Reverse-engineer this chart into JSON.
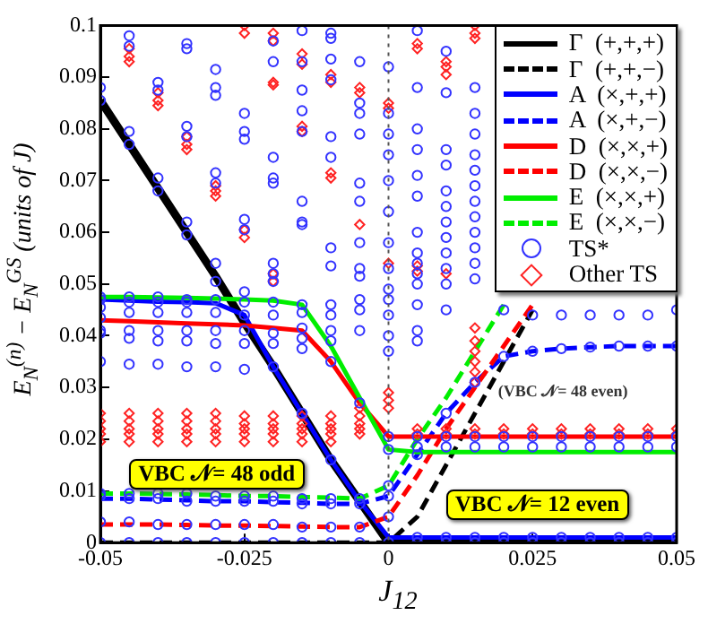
{
  "chart_data": {
    "type": "line",
    "xlabel": "J$_{12}$",
    "ylabel": "E$_{N}$$^{(n)}$ − E$_{N}$$^{GS}$  (units of J)",
    "xlim": [
      -0.05,
      0.05
    ],
    "xticks": [
      -0.05,
      -0.025,
      0,
      0.025,
      0.05
    ],
    "ylim": [
      0,
      0.1
    ],
    "yticks": [
      0,
      0.01,
      0.02,
      0.03,
      0.04,
      0.05,
      0.06,
      0.07,
      0.08,
      0.09,
      0.1
    ],
    "grid": false,
    "legend": "top right",
    "marker": "none",
    "ref_lines": [
      {
        "axis": "x",
        "value": 0,
        "color": "#555555",
        "line_style": "dotted"
      }
    ],
    "annotations": [
      "VBC 𝒩= 48 odd",
      "(VBC 𝒩= 48 even)",
      "VBC 𝒩= 12 even"
    ],
    "series": [
      {
        "name": "Γ  (+,+,+)",
        "color": "#000000",
        "line_style": "solid",
        "x": [
          -0.05,
          -0.045,
          -0.04,
          -0.035,
          -0.03,
          -0.025,
          -0.02,
          -0.015,
          -0.01,
          -0.005,
          0,
          0.005,
          0.01,
          0.015,
          0.02,
          0.025,
          0.03,
          0.035,
          0.04,
          0.045,
          0.05
        ],
        "values": [
          0.0855,
          0.077,
          0.0685,
          0.06,
          0.0515,
          0.0425,
          0.034,
          0.025,
          0.016,
          0.008,
          0,
          0,
          0,
          0,
          0,
          0,
          0,
          0,
          0,
          0,
          0
        ]
      },
      {
        "name": "Γ  (+,+,−)",
        "color": "#000000",
        "line_style": "dashed",
        "x": [
          -0.05,
          -0.045,
          -0.04,
          -0.035,
          -0.03,
          -0.025,
          -0.02,
          -0.015,
          -0.01,
          -0.005,
          0,
          0.005,
          0.01,
          0.015,
          0.02,
          0.025
        ],
        "values": [
          0,
          0,
          0,
          0,
          0,
          0,
          0,
          0,
          0,
          0,
          0,
          0.005,
          0.015,
          0.025,
          0.035,
          0.045
        ]
      },
      {
        "name": "A  (×,+,+)",
        "color": "#0000ff",
        "line_style": "solid",
        "x": [
          -0.05,
          -0.045,
          -0.04,
          -0.035,
          -0.03,
          -0.025,
          -0.02,
          -0.015,
          -0.01,
          -0.005,
          0,
          0.005,
          0.01,
          0.015,
          0.02,
          0.025,
          0.03,
          0.035,
          0.04,
          0.045,
          0.05
        ],
        "values": [
          0.047,
          0.0468,
          0.0466,
          0.0465,
          0.0463,
          0.044,
          0.034,
          0.025,
          0.016,
          0.008,
          0.001,
          0.001,
          0.001,
          0.001,
          0.001,
          0.001,
          0.001,
          0.001,
          0.001,
          0.001,
          0.001
        ]
      },
      {
        "name": "A  (×,+,−)",
        "color": "#0000ff",
        "line_style": "dashed",
        "x": [
          -0.05,
          -0.045,
          -0.04,
          -0.035,
          -0.03,
          -0.025,
          -0.02,
          -0.015,
          -0.01,
          -0.005,
          0,
          0.005,
          0.01,
          0.015,
          0.02,
          0.025,
          0.03,
          0.035,
          0.04,
          0.045,
          0.05
        ],
        "values": [
          0.0085,
          0.0085,
          0.0083,
          0.0082,
          0.008,
          0.008,
          0.0078,
          0.0077,
          0.0075,
          0.0075,
          0.009,
          0.017,
          0.025,
          0.031,
          0.036,
          0.037,
          0.0375,
          0.0378,
          0.038,
          0.038,
          0.038
        ]
      },
      {
        "name": "D  (×,×,+)",
        "color": "#ff0000",
        "line_style": "solid",
        "x": [
          -0.05,
          -0.045,
          -0.04,
          -0.035,
          -0.03,
          -0.025,
          -0.02,
          -0.015,
          -0.01,
          -0.005,
          0,
          0.005,
          0.01,
          0.015,
          0.02,
          0.025,
          0.03,
          0.035,
          0.04,
          0.045,
          0.05
        ],
        "values": [
          0.043,
          0.0428,
          0.0426,
          0.0424,
          0.0422,
          0.042,
          0.0415,
          0.041,
          0.035,
          0.027,
          0.0205,
          0.0205,
          0.0205,
          0.0205,
          0.0205,
          0.0205,
          0.0205,
          0.0205,
          0.0205,
          0.0205,
          0.0205
        ]
      },
      {
        "name": "D  (×,×,−)",
        "color": "#ff0000",
        "line_style": "dashed",
        "x": [
          -0.05,
          -0.045,
          -0.04,
          -0.035,
          -0.03,
          -0.025,
          -0.02,
          -0.015,
          -0.01,
          -0.005,
          0,
          0.005,
          0.01,
          0.015,
          0.02,
          0.025
        ],
        "values": [
          0.0035,
          0.0035,
          0.0035,
          0.0034,
          0.0033,
          0.0033,
          0.0032,
          0.0031,
          0.003,
          0.003,
          0.005,
          0.013,
          0.022,
          0.03,
          0.038,
          0.046
        ]
      },
      {
        "name": "E  (×,×,+)",
        "color": "#00ee00",
        "line_style": "solid",
        "x": [
          -0.05,
          -0.045,
          -0.04,
          -0.035,
          -0.03,
          -0.025,
          -0.02,
          -0.015,
          -0.01,
          -0.005,
          0,
          0.005,
          0.01,
          0.015,
          0.02,
          0.025,
          0.03,
          0.035,
          0.04,
          0.045,
          0.05
        ],
        "values": [
          0.0475,
          0.0475,
          0.0474,
          0.0473,
          0.0472,
          0.047,
          0.0468,
          0.046,
          0.038,
          0.028,
          0.018,
          0.0175,
          0.0175,
          0.0175,
          0.0175,
          0.0175,
          0.0175,
          0.0175,
          0.0175,
          0.0175,
          0.0175
        ]
      },
      {
        "name": "E  (×,×,−)",
        "color": "#00ee00",
        "line_style": "dashed",
        "x": [
          -0.05,
          -0.045,
          -0.04,
          -0.035,
          -0.03,
          -0.025,
          -0.02,
          -0.015,
          -0.01,
          -0.005,
          0,
          0.005,
          0.01,
          0.015,
          0.02
        ],
        "values": [
          0.0095,
          0.0095,
          0.0094,
          0.0093,
          0.0092,
          0.009,
          0.009,
          0.0088,
          0.0087,
          0.0085,
          0.011,
          0.02,
          0.028,
          0.037,
          0.046
        ]
      },
      {
        "name": "TS*",
        "type": "scatter",
        "color": "#3333ff",
        "marker": "circle",
        "x": [
          -0.05,
          -0.05,
          -0.05,
          -0.05,
          -0.05,
          -0.05,
          -0.05,
          -0.05,
          -0.05,
          -0.05,
          -0.05,
          -0.05,
          -0.05,
          -0.045,
          -0.045,
          -0.045,
          -0.045,
          -0.045,
          -0.045,
          -0.045,
          -0.045,
          -0.045,
          -0.045,
          -0.045,
          -0.045,
          -0.045,
          -0.045,
          -0.04,
          -0.04,
          -0.04,
          -0.04,
          -0.04,
          -0.04,
          -0.04,
          -0.04,
          -0.04,
          -0.04,
          -0.04,
          -0.04,
          -0.04,
          -0.04,
          -0.035,
          -0.035,
          -0.035,
          -0.035,
          -0.035,
          -0.035,
          -0.035,
          -0.035,
          -0.035,
          -0.035,
          -0.035,
          -0.035,
          -0.035,
          -0.035,
          -0.035,
          -0.035,
          -0.03,
          -0.03,
          -0.03,
          -0.03,
          -0.03,
          -0.03,
          -0.03,
          -0.03,
          -0.03,
          -0.03,
          -0.03,
          -0.03,
          -0.03,
          -0.03,
          -0.03,
          -0.03,
          -0.025,
          -0.025,
          -0.025,
          -0.025,
          -0.025,
          -0.025,
          -0.025,
          -0.025,
          -0.025,
          -0.025,
          -0.025,
          -0.025,
          -0.025,
          -0.025,
          -0.025,
          -0.02,
          -0.02,
          -0.02,
          -0.02,
          -0.02,
          -0.02,
          -0.02,
          -0.02,
          -0.02,
          -0.02,
          -0.02,
          -0.02,
          -0.02,
          -0.02,
          -0.02,
          -0.02,
          -0.02,
          -0.015,
          -0.015,
          -0.015,
          -0.015,
          -0.015,
          -0.015,
          -0.015,
          -0.015,
          -0.015,
          -0.015,
          -0.015,
          -0.015,
          -0.015,
          -0.015,
          -0.015,
          -0.015,
          -0.015,
          -0.015,
          -0.01,
          -0.01,
          -0.01,
          -0.01,
          -0.01,
          -0.01,
          -0.01,
          -0.01,
          -0.01,
          -0.01,
          -0.01,
          -0.01,
          -0.01,
          -0.01,
          -0.01,
          -0.01,
          -0.01,
          -0.01,
          -0.005,
          -0.005,
          -0.005,
          -0.005,
          -0.005,
          -0.005,
          -0.005,
          -0.005,
          -0.005,
          -0.005,
          -0.005,
          -0.005,
          -0.005,
          -0.005,
          -0.005,
          -0.005,
          -0.005,
          0,
          0,
          0,
          0,
          0,
          0,
          0,
          0,
          0,
          0,
          0,
          0,
          0,
          0,
          0,
          0,
          0,
          0,
          0,
          0.005,
          0.005,
          0.005,
          0.005,
          0.005,
          0.005,
          0.005,
          0.005,
          0.005,
          0.005,
          0.005,
          0.005,
          0.005,
          0.005,
          0.005,
          0.005,
          0.005,
          0.005,
          0.005,
          0.01,
          0.01,
          0.01,
          0.01,
          0.01,
          0.01,
          0.01,
          0.01,
          0.01,
          0.01,
          0.01,
          0.01,
          0.01,
          0.01,
          0.01,
          0.01,
          0.01,
          0.015,
          0.015,
          0.015,
          0.015,
          0.015,
          0.015,
          0.015,
          0.015,
          0.015,
          0.015,
          0.015,
          0.015,
          0.015,
          0.015,
          0.015,
          0.015,
          0.015,
          0.02,
          0.02,
          0.02,
          0.02,
          0.02,
          0.02,
          0.025,
          0.025,
          0.025,
          0.025,
          0.025,
          0.025,
          0.03,
          0.03,
          0.03,
          0.03,
          0.03,
          0.03,
          0.035,
          0.035,
          0.035,
          0.035,
          0.035,
          0.035,
          0.04,
          0.04,
          0.04,
          0.04,
          0.04,
          0.04,
          0.045,
          0.045,
          0.045,
          0.045,
          0.045,
          0.045,
          0.05,
          0.05,
          0.05,
          0.05,
          0.05,
          0.05
        ],
        "values": [
          0.088,
          0.0855,
          0.0475,
          0.047,
          0.0455,
          0.0435,
          0.041,
          0.0405,
          0.035,
          0.0095,
          0.009,
          0.004,
          0,
          0.098,
          0.096,
          0.0795,
          0.077,
          0.0475,
          0.0465,
          0.0445,
          0.041,
          0.0395,
          0.0345,
          0.0095,
          0.0085,
          0.004,
          0,
          0.089,
          0.0875,
          0.0705,
          0.068,
          0.0475,
          0.0465,
          0.0445,
          0.041,
          0.039,
          0.0345,
          0.0095,
          0.0085,
          0.0035,
          0,
          0.0965,
          0.0955,
          0.0805,
          0.0785,
          0.062,
          0.0595,
          0.047,
          0.0465,
          0.0445,
          0.041,
          0.039,
          0.034,
          0.0095,
          0.008,
          0.0035,
          0,
          0.0915,
          0.088,
          0.0865,
          0.0715,
          0.0695,
          0.054,
          0.0505,
          0.047,
          0.0445,
          0.041,
          0.0385,
          0.034,
          0.009,
          0.008,
          0.0035,
          0,
          0.083,
          0.0795,
          0.078,
          0.0625,
          0.0605,
          0.0485,
          0.0465,
          0.044,
          0.041,
          0.0385,
          0.0335,
          0.009,
          0.008,
          0.0035,
          0,
          0.097,
          0.093,
          0.0745,
          0.0705,
          0.0695,
          0.054,
          0.052,
          0.0505,
          0.0465,
          0.044,
          0.0405,
          0.0385,
          0.034,
          0.009,
          0.008,
          0.0035,
          0,
          0.099,
          0.093,
          0.0875,
          0.0835,
          0.0795,
          0.066,
          0.062,
          0.0615,
          0.046,
          0.0445,
          0.0415,
          0.0395,
          0.0375,
          0.025,
          0.0085,
          0.0075,
          0.003,
          0,
          0.0985,
          0.0975,
          0.0935,
          0.0895,
          0.0785,
          0.0745,
          0.057,
          0.0535,
          0.046,
          0.044,
          0.041,
          0.039,
          0.035,
          0.016,
          0.0085,
          0.0075,
          0.003,
          0,
          0.093,
          0.085,
          0.083,
          0.079,
          0.0695,
          0.066,
          0.058,
          0.053,
          0.0515,
          0.047,
          0.045,
          0.041,
          0.027,
          0.0085,
          0.0075,
          0.003,
          0,
          0.092,
          0.083,
          0.079,
          0.075,
          0.07,
          0.064,
          0.058,
          0.053,
          0.049,
          0.047,
          0.044,
          0.04,
          0.037,
          0.0205,
          0.018,
          0.011,
          0.009,
          0.005,
          0,
          0.099,
          0.088,
          0.08,
          0.076,
          0.071,
          0.067,
          0.06,
          0.056,
          0.054,
          0.052,
          0.05,
          0.046,
          0.041,
          0.039,
          0.0205,
          0.0185,
          0.017,
          0.001,
          0,
          0.095,
          0.087,
          0.076,
          0.073,
          0.068,
          0.065,
          0.062,
          0.059,
          0.056,
          0.053,
          0.05,
          0.045,
          0.025,
          0.0205,
          0.0185,
          0.001,
          0,
          0.088,
          0.083,
          0.079,
          0.075,
          0.072,
          0.069,
          0.066,
          0.063,
          0.06,
          0.057,
          0.054,
          0.051,
          0.031,
          0.0205,
          0.0185,
          0.001,
          0,
          0.045,
          0.036,
          0.0205,
          0.0185,
          0.001,
          0,
          0.044,
          0.037,
          0.0205,
          0.0185,
          0.001,
          0,
          0.044,
          0.0375,
          0.0205,
          0.0185,
          0.001,
          0,
          0.044,
          0.0378,
          0.0205,
          0.0185,
          0.001,
          0,
          0.044,
          0.038,
          0.0205,
          0.0185,
          0.001,
          0,
          0.044,
          0.038,
          0.0205,
          0.0185,
          0.001,
          0,
          0.045,
          0.038,
          0.0205,
          0.0185,
          0.001,
          0
        ]
      },
      {
        "name": "Other TS",
        "type": "scatter",
        "color": "#ff2222",
        "marker": "diamond",
        "x": [
          -0.05,
          -0.05,
          -0.05,
          -0.05,
          -0.05,
          -0.045,
          -0.045,
          -0.045,
          -0.045,
          -0.045,
          -0.045,
          -0.045,
          -0.045,
          -0.04,
          -0.04,
          -0.04,
          -0.04,
          -0.04,
          -0.04,
          -0.04,
          -0.04,
          -0.035,
          -0.035,
          -0.035,
          -0.035,
          -0.035,
          -0.035,
          -0.035,
          -0.035,
          -0.03,
          -0.03,
          -0.03,
          -0.03,
          -0.03,
          -0.03,
          -0.03,
          -0.03,
          -0.025,
          -0.025,
          -0.025,
          -0.025,
          -0.025,
          -0.025,
          -0.025,
          -0.025,
          -0.025,
          -0.02,
          -0.02,
          -0.02,
          -0.02,
          -0.02,
          -0.02,
          -0.02,
          -0.02,
          -0.02,
          -0.02,
          -0.02,
          -0.015,
          -0.015,
          -0.015,
          -0.015,
          -0.015,
          -0.015,
          -0.015,
          -0.015,
          -0.015,
          -0.01,
          -0.01,
          -0.01,
          -0.01,
          -0.01,
          -0.01,
          -0.01,
          -0.01,
          -0.01,
          -0.005,
          -0.005,
          -0.005,
          -0.005,
          -0.005,
          -0.005,
          -0.005,
          -0.005,
          0,
          0,
          0,
          0,
          0,
          0,
          0.005,
          0.005,
          0.005,
          0.005,
          0.005,
          0.005,
          0.01,
          0.01,
          0.01,
          0.01,
          0.01,
          0.01,
          0.015,
          0.015,
          0.015,
          0.015,
          0.015,
          0.015,
          0.015,
          0.015,
          0.015,
          0.015,
          0.015,
          0.02,
          0.02,
          0.025,
          0.025,
          0.03,
          0.03,
          0.035,
          0.035,
          0.04,
          0.04,
          0.045,
          0.045,
          0.05,
          0.05
        ],
        "values": [
          0.025,
          0.0235,
          0.022,
          0.021,
          0.0195,
          0.0955,
          0.094,
          0.093,
          0.025,
          0.0235,
          0.022,
          0.021,
          0.0195,
          0.087,
          0.0855,
          0.0845,
          0.025,
          0.0235,
          0.022,
          0.021,
          0.0195,
          0.0785,
          0.077,
          0.076,
          0.025,
          0.0235,
          0.022,
          0.021,
          0.0195,
          0.069,
          0.068,
          0.067,
          0.025,
          0.0235,
          0.022,
          0.021,
          0.0195,
          0.1,
          0.0985,
          0.0605,
          0.059,
          0.0245,
          0.023,
          0.022,
          0.021,
          0.0195,
          0.0985,
          0.097,
          0.089,
          0.0885,
          0.052,
          0.0505,
          0.0245,
          0.023,
          0.022,
          0.021,
          0.0195,
          0.0945,
          0.0925,
          0.0805,
          0.0795,
          0.0245,
          0.023,
          0.022,
          0.021,
          0.0195,
          0.0905,
          0.089,
          0.0715,
          0.0705,
          0.0245,
          0.023,
          0.022,
          0.021,
          0.0195,
          0.088,
          0.087,
          0.0615,
          0.026,
          0.0245,
          0.023,
          0.022,
          0.021,
          0.085,
          0.084,
          0.054,
          0.029,
          0.0275,
          0.026,
          0.0965,
          0.0955,
          0.0535,
          0.0525,
          0.022,
          0.021,
          0.093,
          0.092,
          0.0905,
          0.052,
          0.022,
          0.021,
          0.1,
          0.0985,
          0.0975,
          0.0415,
          0.039,
          0.037,
          0.035,
          0.033,
          0.031,
          0.022,
          0.021,
          0.022,
          0.021,
          0.022,
          0.021,
          0.022,
          0.021,
          0.022,
          0.021,
          0.022,
          0.021,
          0.022,
          0.021,
          0.022,
          0.021
        ]
      }
    ]
  }
}
